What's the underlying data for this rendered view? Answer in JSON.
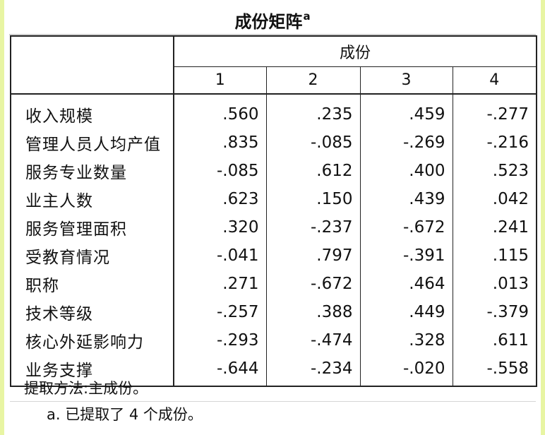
{
  "title": "成份矩阵",
  "title_footnote_marker": "a",
  "group_header": "成份",
  "columns": [
    "1",
    "2",
    "3",
    "4"
  ],
  "rows": [
    {
      "label": "收入规模",
      "values": [
        ".560",
        ".235",
        ".459",
        "-.277"
      ]
    },
    {
      "label": "管理人员人均产值",
      "values": [
        ".835",
        "-.085",
        "-.269",
        "-.216"
      ]
    },
    {
      "label": "服务专业数量",
      "values": [
        "-.085",
        ".612",
        ".400",
        ".523"
      ]
    },
    {
      "label": "业主人数",
      "values": [
        ".623",
        ".150",
        ".439",
        ".042"
      ]
    },
    {
      "label": "服务管理面积",
      "values": [
        ".320",
        "-.237",
        "-.672",
        ".241"
      ]
    },
    {
      "label": "受教育情况",
      "values": [
        "-.041",
        ".797",
        "-.391",
        ".115"
      ]
    },
    {
      "label": "职称",
      "values": [
        ".271",
        "-.672",
        ".464",
        ".013"
      ]
    },
    {
      "label": "技术等级",
      "values": [
        "-.257",
        ".388",
        ".449",
        "-.379"
      ]
    },
    {
      "label": "核心外延影响力",
      "values": [
        "-.293",
        "-.474",
        ".328",
        ".611"
      ]
    },
    {
      "label": "业务支撑",
      "values": [
        "-.644",
        "-.234",
        "-.020",
        "-.558"
      ]
    }
  ],
  "footnotes": {
    "method": "提取方法:主成份。",
    "a": "a. 已提取了 4 个成份。"
  },
  "colors": {
    "accent_strip": "#e8f5a3",
    "border": "#222222"
  }
}
